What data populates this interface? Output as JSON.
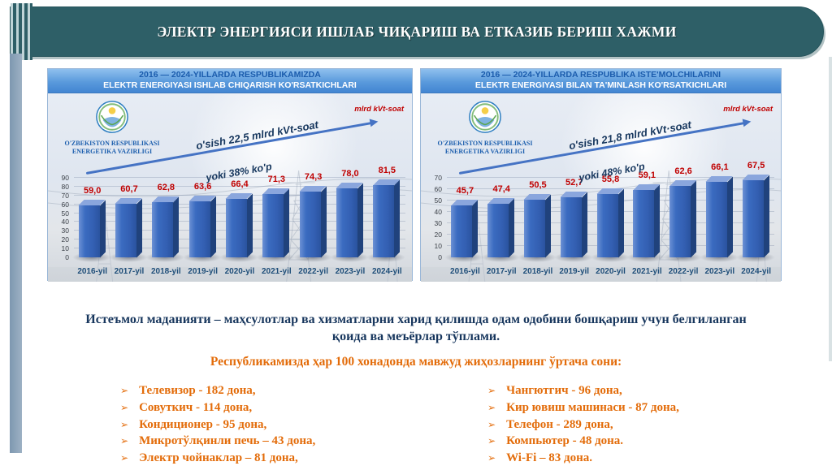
{
  "slide_title": "ЭЛЕКТР ЭНЕРГИЯСИ ИШЛАБ ЧИҚАРИШ ВА ЕТКАЗИБ БЕРИШ ХАЖМИ",
  "chart_data": [
    {
      "type": "bar",
      "title_line1": "2016 — 2024-YILLARDA RESPUBLIKAMIZDA",
      "title_line2": "ELEKTR ENERGIYASI ISHLAB CHIQARISH KO'RSATKICHLARI",
      "org_line1": "O'ZBEKISTON RESPUBLIKASI",
      "org_line2": "ENERGETIKA VAZIRLIGI",
      "unit_label": "mlrd kVt-soat",
      "growth_label": "o'sish 22,5 mlrd kVt-soat",
      "growth_sub_label": "yoki 38% ko'p",
      "categories": [
        "2016-yil",
        "2017-yil",
        "2018-yil",
        "2019-yil",
        "2020-yil",
        "2021-yil",
        "2022-yil",
        "2023-yil",
        "2024-yil"
      ],
      "values": [
        59.0,
        60.7,
        62.8,
        63.6,
        66.4,
        71.3,
        74.3,
        78.0,
        81.5
      ],
      "value_labels": [
        "59,0",
        "60,7",
        "62,8",
        "63,6",
        "66,4",
        "71,3",
        "74,3",
        "78,0",
        "81,5"
      ],
      "ylim": [
        0,
        90
      ],
      "ytick_step": 10,
      "grid": true,
      "legend": false
    },
    {
      "type": "bar",
      "title_line1": "2016 — 2024-YILLARDA RESPUBLIKA ISTE'MOLCHILARINI",
      "title_line2": "ELEKTR ENERGIYASI BILAN TA'MINLASH KO'RSATKICHLARI",
      "org_line1": "O'ZBEKISTON RESPUBLIKASI",
      "org_line2": "ENERGETIKA VAZIRLIGI",
      "unit_label": "mlrd kVt-soat",
      "growth_label": "o'sish  21,8 mlrd kVt·soat",
      "growth_sub_label": "yoki 48% ko'p",
      "categories": [
        "2016-yil",
        "2017-yil",
        "2018-yil",
        "2019-yil",
        "2020-yil",
        "2021-yil",
        "2022-yil",
        "2023-yil",
        "2024-yil"
      ],
      "values": [
        45.7,
        47.4,
        50.5,
        52.7,
        55.8,
        59.1,
        62.6,
        66.1,
        67.5
      ],
      "value_labels": [
        "45,7",
        "47,4",
        "50,5",
        "52,7",
        "55,8",
        "59,1",
        "62,6",
        "66,1",
        "67,5"
      ],
      "ylim": [
        0,
        70
      ],
      "ytick_step": 10,
      "grid": true,
      "legend": false
    }
  ],
  "body": {
    "definition_text": "Истеъмол маданияти – маҳсулотлар ва хизматларни харид қилишда одам одобини бошқариш учун белгиланган қоида ва меъёрлар тўплами.",
    "list_heading": "Республикамизда ҳар 100 хонадонда мавжуд жиҳозларнинг ўртача сони:",
    "bullet_glyph": "➢",
    "appliances_left": [
      "Телевизор - 182 дона,",
      "Совуткич - 114 дона,",
      "Кондиционер - 95 дона,",
      "Микротўлқинли печь – 43 дона,",
      "Электр чойнаклар – 81 дона,"
    ],
    "appliances_right": [
      "Чангютгич - 96 дона,",
      "Кир ювиш машинаси - 87 дона,",
      "Телефон - 289 дона,",
      "Компьютер  - 48 дона.",
      "Wi-Fi – 83 дона."
    ]
  },
  "colors": {
    "banner_teal": "#2e5f67",
    "left_rail_blue_gray": "#8ca3b8",
    "chart_header_blue": "#4285d2",
    "bar_front_blue": "#3a6bc0",
    "bar_side_navy": "#20427c",
    "value_label_red": "#c00000",
    "axis_label_blue": "#1f4e79",
    "definition_blue": "#17365d",
    "accent_orange": "#e36c0a",
    "arrow_blue": "#4573c4"
  }
}
